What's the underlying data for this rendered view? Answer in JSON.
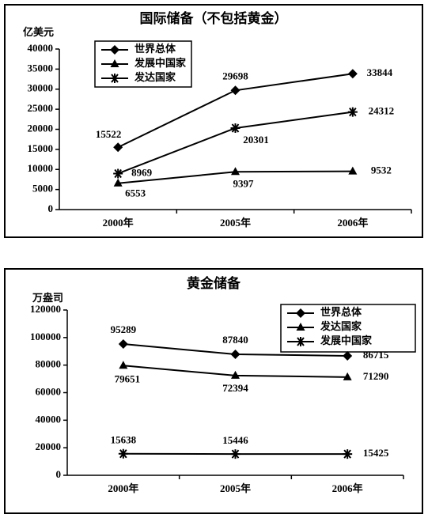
{
  "chart_data": [
    {
      "type": "line",
      "title": "国际储备（不包括黄金）",
      "y_label": "亿美元",
      "categories": [
        "2000年",
        "2005年",
        "2006年"
      ],
      "series": [
        {
          "name": "世界总体",
          "color": "#000000",
          "marker": "diamond",
          "values": [
            15522,
            29698,
            33844
          ]
        },
        {
          "name": "发展中国家",
          "color": "#000000",
          "marker": "triangle",
          "values": [
            6553,
            9397,
            9532
          ]
        },
        {
          "name": "发达国家",
          "color": "#000000",
          "marker": "asterisk",
          "values": [
            8969,
            20301,
            24312
          ]
        }
      ],
      "ylim": [
        0,
        40000
      ],
      "yticks": [
        0,
        5000,
        10000,
        15000,
        20000,
        25000,
        30000,
        35000,
        40000
      ]
    },
    {
      "type": "line",
      "title": "黄金储备",
      "y_label": "万盎司",
      "categories": [
        "2000年",
        "2005年",
        "2006年"
      ],
      "series": [
        {
          "name": "世界总体",
          "color": "#000000",
          "marker": "diamond",
          "values": [
            95289,
            87840,
            86715
          ]
        },
        {
          "name": "发达国家",
          "color": "#000000",
          "marker": "triangle",
          "values": [
            79651,
            72394,
            71290
          ]
        },
        {
          "name": "发展中国家",
          "color": "#000000",
          "marker": "asterisk",
          "values": [
            15638,
            15446,
            15425
          ]
        }
      ],
      "ylim": [
        0,
        120000
      ],
      "yticks": [
        0,
        20000,
        40000,
        60000,
        80000,
        100000,
        120000
      ]
    }
  ]
}
